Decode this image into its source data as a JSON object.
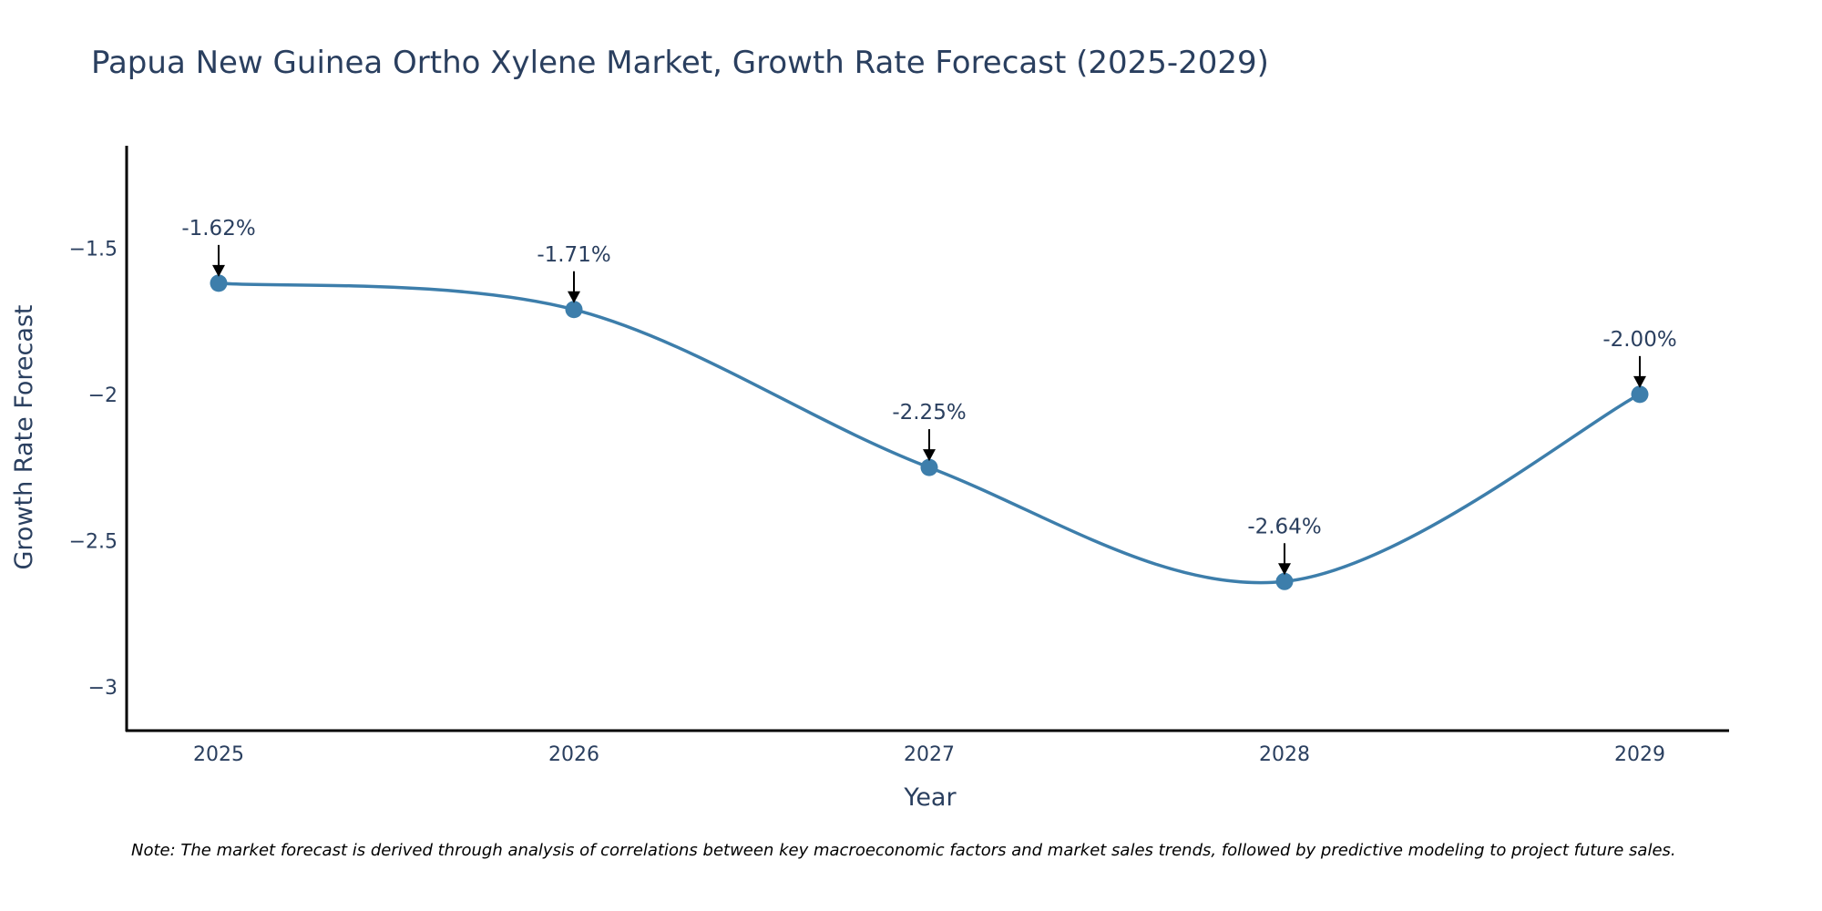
{
  "chart_data": {
    "type": "line",
    "title": "Papua New Guinea Ortho Xylene Market, Growth Rate Forecast (2025-2029)",
    "xlabel": "Year",
    "ylabel": "Growth Rate Forecast",
    "categories": [
      "2025",
      "2026",
      "2027",
      "2028",
      "2029"
    ],
    "series": [
      {
        "name": "Growth Rate Forecast",
        "values": [
          -1.62,
          -1.71,
          -2.25,
          -2.64,
          -2.0
        ],
        "labels": [
          "-1.62%",
          "-1.71%",
          "-2.25%",
          "-2.64%",
          "-2.00%"
        ]
      }
    ],
    "ylim": [
      -3.15,
      -1.15
    ],
    "yticks": [
      -3,
      -2.5,
      -2,
      -1.5
    ],
    "ytick_labels": [
      "−3",
      "−2.5",
      "−2",
      "−1.5"
    ],
    "grid": false,
    "line_shape": "spline",
    "colors": {
      "line": "#3d7eab",
      "marker": "#3d7eab",
      "axis": "#000000",
      "text": "#2a3f5f",
      "arrow": "#000000"
    },
    "note": "Note: The market forecast is derived through analysis of correlations between key macroeconomic factors and market sales trends, followed by predictive modeling to project future sales."
  }
}
